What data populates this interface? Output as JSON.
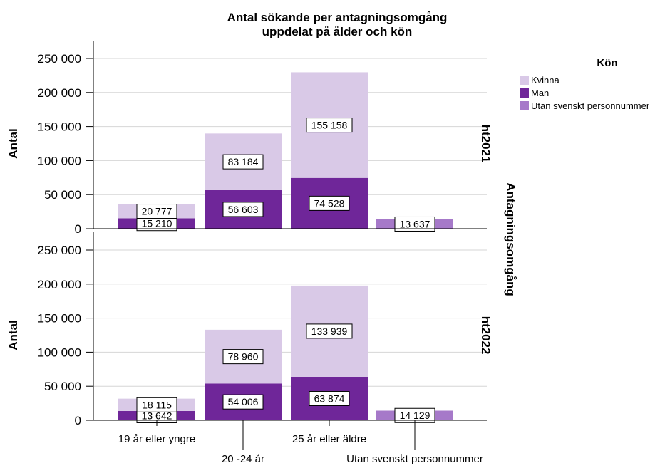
{
  "chart_data": {
    "type": "bar",
    "stacked": true,
    "title": "Antal sökande per antagningsomgång",
    "subtitle": "uppdelat på ålder och kön",
    "ylabel": "Antal",
    "panel_axis_label": "Antagningsomgång",
    "ylim": [
      0,
      250000
    ],
    "yticks": [
      0,
      50000,
      100000,
      150000,
      200000,
      250000
    ],
    "ytick_labels": [
      "0",
      "50 000",
      "100 000",
      "150 000",
      "200 000",
      "250 000"
    ],
    "grid": true,
    "categories": [
      "19 år eller yngre",
      "20 -24 år",
      "25 år eller äldre",
      "Utan svenskt personnummer"
    ],
    "legend": {
      "title": "Kön",
      "position": "top-right",
      "items": [
        {
          "name": "Kvinna",
          "color": "#d9c9e7"
        },
        {
          "name": "Man",
          "color": "#6f2699"
        },
        {
          "name": "Utan svenskt personnummer",
          "color": "#a679c9"
        }
      ]
    },
    "panels": [
      {
        "label": "ht2021",
        "series": [
          {
            "name": "Man",
            "values": [
              15210,
              56603,
              74528,
              null
            ],
            "labels": [
              "15 210",
              "56 603",
              "74 528",
              ""
            ]
          },
          {
            "name": "Kvinna",
            "values": [
              20777,
              83184,
              155158,
              null
            ],
            "labels": [
              "20 777",
              "83 184",
              "155 158",
              ""
            ]
          },
          {
            "name": "Utan svenskt personnummer",
            "values": [
              null,
              null,
              null,
              13637
            ],
            "labels": [
              "",
              "",
              "",
              "13 637"
            ]
          }
        ]
      },
      {
        "label": "ht2022",
        "series": [
          {
            "name": "Man",
            "values": [
              13642,
              54006,
              63874,
              null
            ],
            "labels": [
              "13 642",
              "54 006",
              "63 874",
              ""
            ]
          },
          {
            "name": "Kvinna",
            "values": [
              18115,
              78960,
              133939,
              null
            ],
            "labels": [
              "18 115",
              "78 960",
              "133 939",
              ""
            ]
          },
          {
            "name": "Utan svenskt personnummer",
            "values": [
              null,
              null,
              null,
              14129
            ],
            "labels": [
              "",
              "",
              "",
              "14 129"
            ]
          }
        ]
      }
    ]
  }
}
